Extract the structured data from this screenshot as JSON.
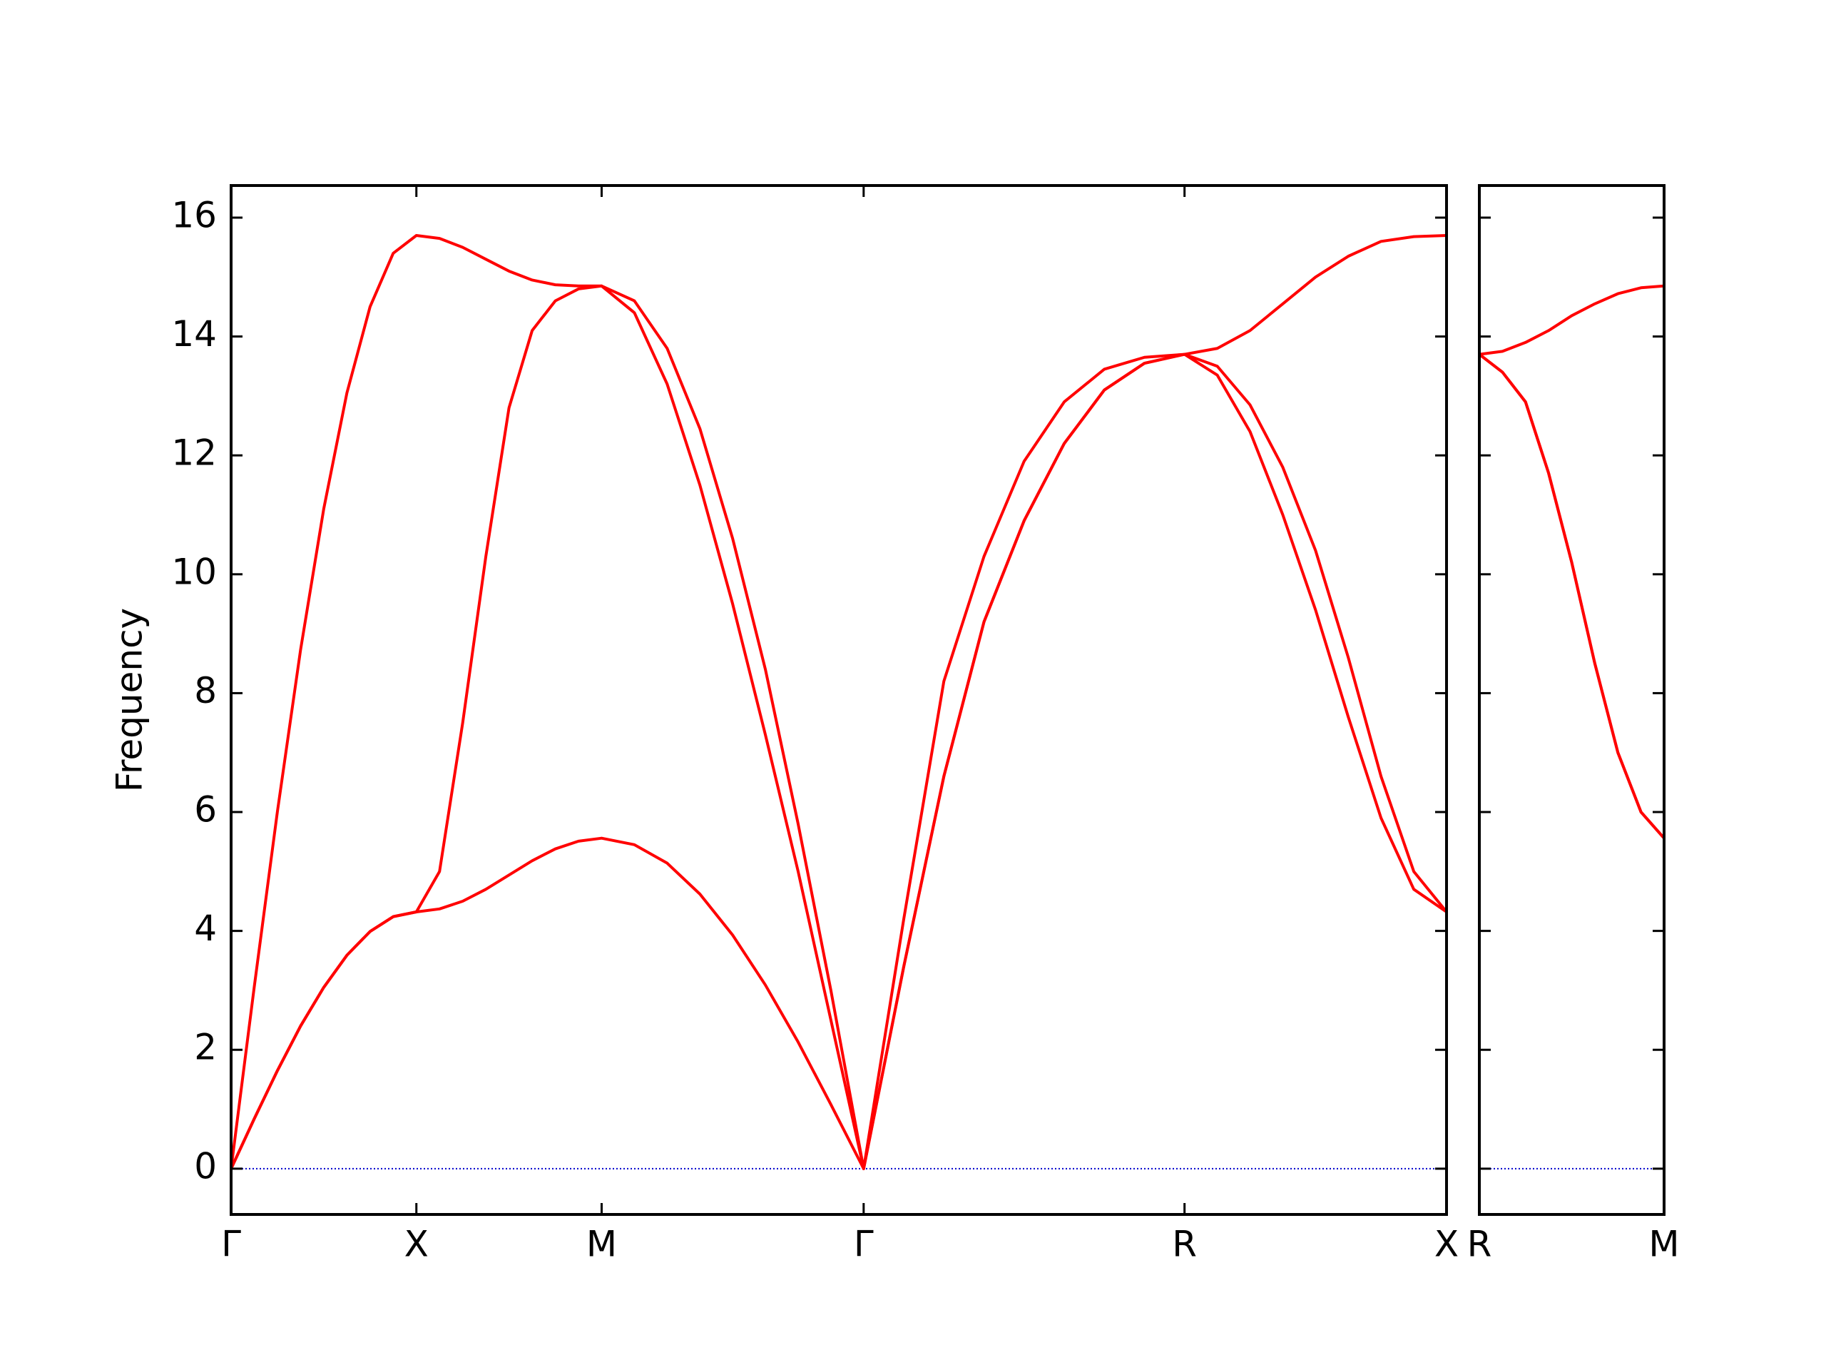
{
  "chart_data": [
    {
      "type": "line",
      "ylabel": "Frequency",
      "x": [
        0,
        0.0625,
        0.125,
        0.1875,
        0.25,
        0.3125,
        0.375,
        0.4375,
        0.5,
        0.5625,
        0.625,
        0.6875,
        0.75,
        0.8125,
        0.875,
        0.9375,
        1.0,
        1.0884,
        1.1768,
        1.2652,
        1.3536,
        1.4419,
        1.5303,
        1.6187,
        1.7071,
        1.8154,
        1.9236,
        2.0319,
        2.1401,
        2.2484,
        2.3566,
        2.4649,
        2.5731,
        2.6615,
        2.7499,
        2.8383,
        2.9267,
        3.015,
        3.1034,
        3.1918,
        3.2802
      ],
      "series": [
        {
          "color": "#ff0000",
          "values": [
            0,
            0.84,
            1.65,
            2.4,
            3.05,
            3.59,
            3.99,
            4.24,
            4.32,
            4.37,
            4.5,
            4.7,
            4.94,
            5.18,
            5.38,
            5.51,
            5.56,
            5.45,
            5.14,
            4.62,
            3.93,
            3.09,
            2.13,
            1.08,
            0,
            3.4,
            6.6,
            9.2,
            10.9,
            12.2,
            13.1,
            13.55,
            13.7,
            13.35,
            12.4,
            11.0,
            9.4,
            7.6,
            5.9,
            4.7,
            4.32
          ]
        },
        {
          "color": "#ff0000",
          "values": [
            0,
            0.84,
            1.65,
            2.4,
            3.05,
            3.59,
            3.99,
            4.24,
            4.32,
            5.0,
            7.5,
            10.3,
            12.8,
            14.1,
            14.6,
            14.8,
            14.85,
            14.4,
            13.2,
            11.5,
            9.5,
            7.3,
            5.0,
            2.5,
            0,
            3.4,
            6.6,
            9.2,
            10.9,
            12.2,
            13.1,
            13.55,
            13.7,
            13.5,
            12.85,
            11.8,
            10.4,
            8.6,
            6.6,
            5.0,
            4.32
          ]
        },
        {
          "color": "#ff0000",
          "values": [
            0,
            3.06,
            6.01,
            8.73,
            11.1,
            13.05,
            14.5,
            15.4,
            15.7,
            15.65,
            15.5,
            15.3,
            15.1,
            14.95,
            14.87,
            14.85,
            14.85,
            14.6,
            13.8,
            12.45,
            10.6,
            8.4,
            5.8,
            3.0,
            0,
            4.2,
            8.2,
            10.3,
            11.9,
            12.9,
            13.45,
            13.65,
            13.7,
            13.8,
            14.1,
            14.55,
            15.0,
            15.35,
            15.6,
            15.68,
            15.7
          ]
        }
      ],
      "xlim": [
        0,
        3.2802
      ],
      "xticks": [
        {
          "value": 0,
          "label": "Γ"
        },
        {
          "value": 0.5,
          "label": "X"
        },
        {
          "value": 1.0,
          "label": "M"
        },
        {
          "value": 1.7071,
          "label": "Γ"
        },
        {
          "value": 2.5731,
          "label": "R"
        },
        {
          "value": 3.2802,
          "label": "X"
        }
      ],
      "ylim": [
        -0.77,
        16.54
      ],
      "yticks": [
        0,
        2,
        4,
        6,
        8,
        10,
        12,
        14,
        16
      ],
      "ytick_labels": true,
      "hline": 0,
      "hline_color": "#0000cc"
    },
    {
      "type": "line",
      "x": [
        0,
        0.0625,
        0.125,
        0.1875,
        0.25,
        0.3125,
        0.375,
        0.4375,
        0.5
      ],
      "series": [
        {
          "color": "#ff0000",
          "values": [
            13.7,
            13.4,
            12.9,
            11.7,
            10.2,
            8.5,
            7.0,
            6.0,
            5.56
          ]
        },
        {
          "color": "#ff0000",
          "values": [
            13.7,
            13.4,
            12.9,
            11.7,
            10.2,
            8.5,
            7.0,
            6.0,
            5.56
          ]
        },
        {
          "color": "#ff0000",
          "values": [
            13.7,
            13.75,
            13.9,
            14.1,
            14.35,
            14.55,
            14.72,
            14.82,
            14.85
          ]
        }
      ],
      "xlim": [
        0,
        0.5
      ],
      "xticks": [
        {
          "value": 0,
          "label": "R"
        },
        {
          "value": 0.5,
          "label": "M"
        }
      ],
      "ylim": [
        -0.77,
        16.54
      ],
      "yticks": [
        0,
        2,
        4,
        6,
        8,
        10,
        12,
        14,
        16
      ],
      "ytick_labels": false,
      "hline": 0,
      "hline_color": "#0000cc"
    }
  ]
}
